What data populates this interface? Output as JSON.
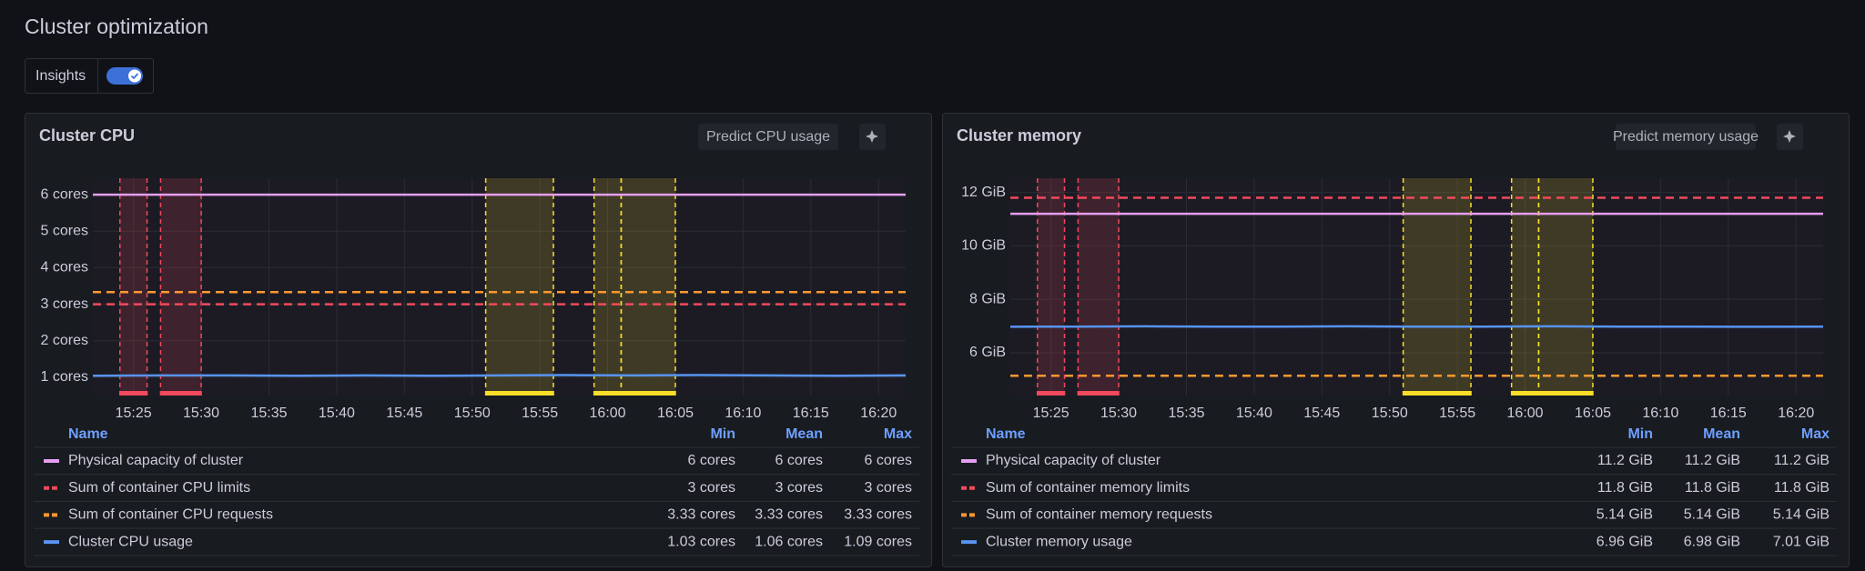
{
  "title": "Cluster optimization",
  "insights": {
    "label": "Insights",
    "enabled": true
  },
  "chart_data": [
    {
      "type": "line",
      "title": "Cluster CPU",
      "button": "Predict CPU usage",
      "xlim": [
        "15:22",
        "16:22"
      ],
      "xticks": [
        "15:25",
        "15:30",
        "15:35",
        "15:40",
        "15:45",
        "15:50",
        "15:55",
        "16:00",
        "16:05",
        "16:10",
        "16:15",
        "16:20"
      ],
      "ylim": [
        0.5,
        6.45
      ],
      "yticks": [
        {
          "value": 1,
          "label": "1 cores"
        },
        {
          "value": 2,
          "label": "2 cores"
        },
        {
          "value": 3,
          "label": "3 cores"
        },
        {
          "value": 4,
          "label": "4 cores"
        },
        {
          "value": 5,
          "label": "5 cores"
        },
        {
          "value": 6,
          "label": "6 cores"
        }
      ],
      "grid": true,
      "regions": [
        {
          "start": "15:24",
          "end": "15:26",
          "color": "#f2495c"
        },
        {
          "start": "15:27",
          "end": "15:30",
          "color": "#f2495c"
        },
        {
          "start": "15:51",
          "end": "15:56",
          "color": "#fade2a"
        },
        {
          "start": "15:59",
          "end": "16:01",
          "color": "#fade2a"
        },
        {
          "start": "16:01",
          "end": "16:05",
          "color": "#fade2a"
        }
      ],
      "legend_columns": [
        "Name",
        "Min",
        "Mean",
        "Max"
      ],
      "series": [
        {
          "name": "Physical capacity of cluster",
          "color": "#e59ef0",
          "dash": false,
          "x": [
            "15:22",
            "16:22"
          ],
          "values": [
            6,
            6
          ],
          "stats": [
            "6 cores",
            "6 cores",
            "6 cores"
          ]
        },
        {
          "name": "Sum of container CPU limits",
          "color": "#f2495c",
          "dash": true,
          "x": [
            "15:22",
            "16:22"
          ],
          "values": [
            3,
            3
          ],
          "stats": [
            "3 cores",
            "3 cores",
            "3 cores"
          ]
        },
        {
          "name": "Sum of container CPU requests",
          "color": "#ff9830",
          "dash": true,
          "x": [
            "15:22",
            "16:22"
          ],
          "values": [
            3.33,
            3.33
          ],
          "stats": [
            "3.33 cores",
            "3.33 cores",
            "3.33 cores"
          ]
        },
        {
          "name": "Cluster CPU usage",
          "color": "#5794f2",
          "dash": false,
          "x": [
            "15:22",
            "15:27",
            "15:32",
            "15:37",
            "15:42",
            "15:47",
            "15:52",
            "15:57",
            "16:02",
            "16:07",
            "16:12",
            "16:17",
            "16:22"
          ],
          "values": [
            1.04,
            1.05,
            1.05,
            1.04,
            1.05,
            1.04,
            1.05,
            1.06,
            1.05,
            1.06,
            1.05,
            1.04,
            1.05
          ],
          "stats": [
            "1.03 cores",
            "1.06 cores",
            "1.09 cores"
          ]
        }
      ]
    },
    {
      "type": "line",
      "title": "Cluster memory",
      "button": "Predict memory usage",
      "xlim": [
        "15:22",
        "16:22"
      ],
      "xticks": [
        "15:25",
        "15:30",
        "15:35",
        "15:40",
        "15:45",
        "15:50",
        "15:55",
        "16:00",
        "16:05",
        "16:10",
        "16:15",
        "16:20"
      ],
      "ylim": [
        4.4,
        12.53
      ],
      "yticks": [
        {
          "value": 6,
          "label": "6 GiB"
        },
        {
          "value": 8,
          "label": "8 GiB"
        },
        {
          "value": 10,
          "label": "10 GiB"
        },
        {
          "value": 12,
          "label": "12 GiB"
        }
      ],
      "grid": true,
      "regions": [
        {
          "start": "15:24",
          "end": "15:26",
          "color": "#f2495c"
        },
        {
          "start": "15:27",
          "end": "15:30",
          "color": "#f2495c"
        },
        {
          "start": "15:51",
          "end": "15:56",
          "color": "#fade2a"
        },
        {
          "start": "15:59",
          "end": "16:01",
          "color": "#fade2a"
        },
        {
          "start": "16:01",
          "end": "16:05",
          "color": "#fade2a"
        }
      ],
      "legend_columns": [
        "Name",
        "Min",
        "Mean",
        "Max"
      ],
      "series": [
        {
          "name": "Physical capacity of cluster",
          "color": "#e59ef0",
          "dash": false,
          "x": [
            "15:22",
            "16:22"
          ],
          "values": [
            11.2,
            11.2
          ],
          "stats": [
            "11.2 GiB",
            "11.2 GiB",
            "11.2 GiB"
          ]
        },
        {
          "name": "Sum of container memory limits",
          "color": "#f2495c",
          "dash": true,
          "x": [
            "15:22",
            "16:22"
          ],
          "values": [
            11.8,
            11.8
          ],
          "stats": [
            "11.8 GiB",
            "11.8 GiB",
            "11.8 GiB"
          ]
        },
        {
          "name": "Sum of container memory requests",
          "color": "#ff9830",
          "dash": true,
          "x": [
            "15:22",
            "16:22"
          ],
          "values": [
            5.14,
            5.14
          ],
          "stats": [
            "5.14 GiB",
            "5.14 GiB",
            "5.14 GiB"
          ]
        },
        {
          "name": "Cluster memory usage",
          "color": "#5794f2",
          "dash": false,
          "x": [
            "15:22",
            "15:27",
            "15:32",
            "15:37",
            "15:42",
            "15:47",
            "15:52",
            "15:57",
            "16:02",
            "16:07",
            "16:12",
            "16:17",
            "16:22"
          ],
          "values": [
            6.97,
            6.98,
            6.99,
            6.98,
            6.98,
            6.99,
            6.98,
            6.98,
            6.99,
            6.98,
            6.98,
            6.97,
            6.98
          ],
          "stats": [
            "6.96 GiB",
            "6.98 GiB",
            "7.01 GiB"
          ]
        }
      ]
    }
  ]
}
